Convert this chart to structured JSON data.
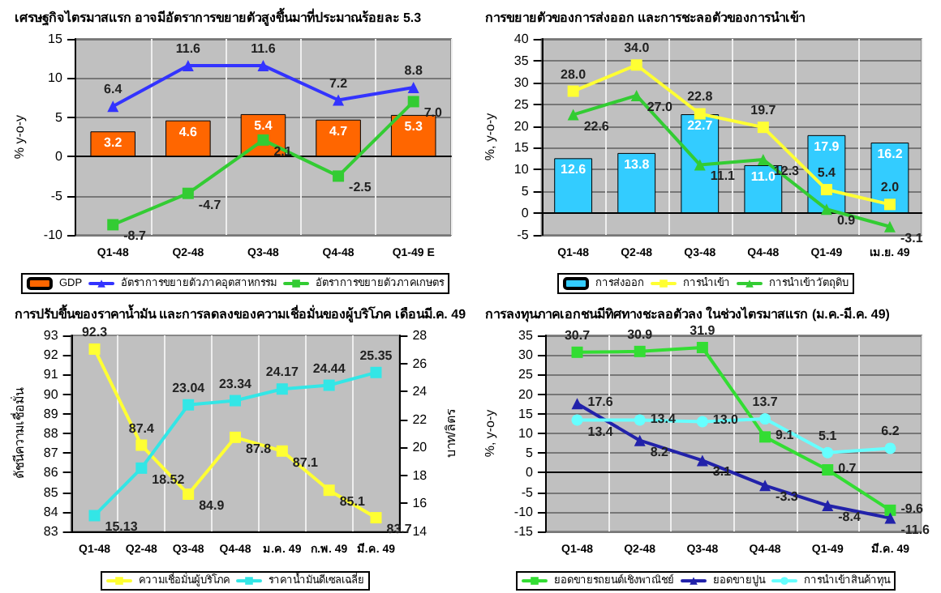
{
  "chart_data": [
    {
      "type": "bar",
      "title": "เศรษฐกิจไตรมาสแรก อาจมีอัตราการขยายตัวสูงขึ้นมาที่ประมาณร้อยละ 5.3",
      "ylabel": "% y-o-y",
      "categories": [
        "Q1-48",
        "Q2-48",
        "Q3-48",
        "Q4-48",
        "Q1-49 E"
      ],
      "series": [
        {
          "name": "GDP",
          "color": "#ff6600",
          "values": [
            3.2,
            4.6,
            5.4,
            4.7,
            5.3
          ],
          "value_labels": [
            "3.2",
            "4.6",
            "5.4",
            "4.7",
            "5.3"
          ]
        },
        {
          "name": "อัตราการขยายตัวภาคอุตสาหกรรม",
          "type": "line",
          "color": "#3333ff",
          "marker": "triangle",
          "values": [
            6.4,
            11.6,
            11.6,
            7.2,
            8.8
          ],
          "value_labels": [
            "6.4",
            "11.6",
            "11.6",
            "7.2",
            "8.8"
          ]
        },
        {
          "name": "อัตราการขยายตัวภาคเกษตร",
          "type": "line",
          "color": "#33cc33",
          "marker": "square",
          "values": [
            -8.7,
            -4.7,
            2.1,
            -2.5,
            7.0
          ],
          "value_labels": [
            "-8.7",
            "-4.7",
            "2.1",
            "-2.5",
            "7.0"
          ]
        }
      ],
      "ylim": [
        -10,
        15
      ],
      "yticks": [
        -10,
        -5,
        0,
        5,
        10,
        15
      ],
      "grid": true,
      "legend": "bottom"
    },
    {
      "type": "bar",
      "title": "การขยายตัวของการส่งออก และการชะลอตัวของการนำเข้า",
      "ylabel": "%, y-o-y",
      "categories": [
        "Q1-48",
        "Q2-48",
        "Q3-48",
        "Q4-48",
        "Q1-49",
        "เม.ย. 49"
      ],
      "series": [
        {
          "name": "การส่งออก",
          "color": "#33ccff",
          "values": [
            12.6,
            13.8,
            22.7,
            11.0,
            17.9,
            16.2
          ],
          "value_labels": [
            "12.6",
            "13.8",
            "22.7",
            "11.0",
            "17.9",
            "16.2"
          ]
        },
        {
          "name": "การนำเข้า",
          "type": "line",
          "color": "#ffff33",
          "marker": "square",
          "values": [
            28.0,
            34.0,
            22.8,
            19.7,
            5.4,
            2.0
          ],
          "value_labels": [
            "28.0",
            "34.0",
            "22.8",
            "19.7",
            "5.4",
            "2.0"
          ]
        },
        {
          "name": "การนำเข้าวัตถุดิบ",
          "type": "line",
          "color": "#33cc33",
          "marker": "triangle",
          "values": [
            22.6,
            27.0,
            11.1,
            12.3,
            0.9,
            -3.1
          ],
          "value_labels": [
            "22.6",
            "27.0",
            "11.1",
            "12.3",
            "0.9",
            "-3.1"
          ]
        }
      ],
      "ylim": [
        -5,
        40
      ],
      "yticks": [
        -5,
        0,
        5,
        10,
        15,
        20,
        25,
        30,
        35,
        40
      ],
      "grid": true,
      "legend": "bottom"
    },
    {
      "type": "line",
      "title": "การปรับขึ้นของราคาน้ำมัน และการลดลงของความเชื่อมั่นของผู้บริโภค เดือนมี.ค. 49",
      "ylabel": "ดัชนีความเชื่อมั่น",
      "y2label": "บาท/ลิตร",
      "categories": [
        "Q1-48",
        "Q2-48",
        "Q3-48",
        "Q4-48",
        "ม.ค. 49",
        "ก.พ. 49",
        "มี.ค. 49"
      ],
      "series": [
        {
          "name": "ความเชื่อมั่นผู้บริโภค",
          "color": "#ffff33",
          "marker": "square",
          "values": [
            92.3,
            87.4,
            84.9,
            87.8,
            87.1,
            85.1,
            83.7
          ],
          "value_labels": [
            "92.3",
            "87.4",
            "84.9",
            "87.8",
            "87.1",
            "85.1",
            "83.7"
          ]
        },
        {
          "name": "ราคาน้ำมันดีเซลเฉลี่ย",
          "color": "#33e6e6",
          "marker": "square",
          "axis": "y2",
          "values": [
            15.13,
            18.52,
            23.04,
            23.34,
            24.17,
            24.44,
            25.35
          ],
          "value_labels": [
            "15.13",
            "18.52",
            "23.04",
            "23.34",
            "24.17",
            "24.44",
            "25.35"
          ]
        }
      ],
      "ylim": [
        83,
        93
      ],
      "yticks": [
        83,
        84,
        85,
        86,
        87,
        88,
        89,
        90,
        91,
        92,
        93
      ],
      "y2lim": [
        14,
        28
      ],
      "y2ticks": [
        14,
        16,
        18,
        20,
        22,
        24,
        26,
        28
      ],
      "grid": "x",
      "legend": "bottom"
    },
    {
      "type": "line",
      "title": "การลงทุนภาคเอกชนมีทิศทางชะลอตัวลง ในช่วงไตรมาสแรก (ม.ค.-มี.ค. 49)",
      "ylabel": "%, y-o-y",
      "categories": [
        "Q1-48",
        "Q2-48",
        "Q3-48",
        "Q4-48",
        "Q1-49",
        "มี.ค. 49"
      ],
      "series": [
        {
          "name": "ยอดขายรถยนต์เชิงพาณิชย์",
          "color": "#33dd33",
          "marker": "square",
          "values": [
            30.7,
            30.9,
            31.9,
            9.1,
            0.7,
            -9.6
          ],
          "value_labels": [
            "30.7",
            "30.9",
            "31.9",
            "9.1",
            "0.7",
            "-9.6"
          ]
        },
        {
          "name": "ยอดขายปูน",
          "color": "#2222aa",
          "marker": "triangle",
          "values": [
            17.6,
            8.2,
            3.1,
            -3.3,
            -8.4,
            -11.6
          ],
          "value_labels": [
            "17.6",
            "8.2",
            "3.1",
            "-3.3",
            "-8.4",
            "-11.6"
          ]
        },
        {
          "name": "การนำเข้าสินค้าทุน",
          "color": "#66ffff",
          "marker": "circle",
          "values": [
            13.4,
            13.4,
            13.0,
            13.7,
            5.1,
            6.2
          ],
          "value_labels": [
            "13.4",
            "13.4",
            "13.0",
            "13.7",
            "5.1",
            "6.2"
          ]
        }
      ],
      "ylim": [
        -15,
        35
      ],
      "yticks": [
        -15,
        -10,
        -5,
        0,
        5,
        10,
        15,
        20,
        25,
        30,
        35
      ],
      "grid": true,
      "legend": "bottom"
    }
  ]
}
